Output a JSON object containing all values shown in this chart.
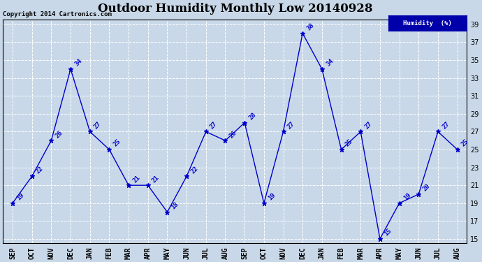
{
  "title": "Outdoor Humidity Monthly Low 20140928",
  "copyright": "Copyright 2014 Cartronics.com",
  "legend_label": "Humidity  (%)",
  "x_labels": [
    "SEP",
    "OCT",
    "NOV",
    "DEC",
    "JAN",
    "FEB",
    "MAR",
    "APR",
    "MAY",
    "JUN",
    "JUL",
    "AUG",
    "SEP",
    "OCT",
    "NOV",
    "DEC",
    "JAN",
    "FEB",
    "MAR",
    "APR",
    "MAY",
    "JUN",
    "JUL",
    "AUG"
  ],
  "y_values": [
    19,
    22,
    26,
    34,
    27,
    25,
    21,
    21,
    18,
    22,
    27,
    26,
    28,
    19,
    27,
    38,
    34,
    25,
    27,
    15,
    19,
    20,
    27,
    25
  ],
  "ylim": [
    14.5,
    39.5
  ],
  "yticks": [
    15,
    17,
    19,
    21,
    23,
    25,
    27,
    29,
    31,
    33,
    35,
    37,
    39
  ],
  "line_color": "#0000cc",
  "marker": "*",
  "marker_size": 5,
  "bg_color": "#c8d8e8",
  "plot_bg": "#c8d8e8",
  "grid_color": "#ffffff",
  "title_fontsize": 12,
  "label_fontsize": 7,
  "annotation_fontsize": 6.5,
  "legend_bg": "#0000aa",
  "legend_text_color": "#ffffff",
  "border_color": "#000000"
}
